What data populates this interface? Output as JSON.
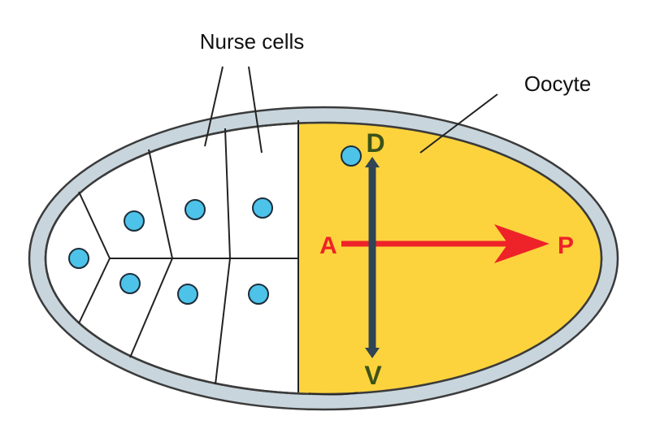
{
  "labels": {
    "nurse_cells": "Nurse cells",
    "oocyte": "Oocyte"
  },
  "axes": {
    "anterior": "A",
    "posterior": "P",
    "dorsal": "D",
    "ventral": "V"
  },
  "colors": {
    "shell_fill": "#c8d5dd",
    "shell_stroke": "#3b3b3b",
    "oocyte_fill": "#fcd33d",
    "nurse_fill": "#ffffff",
    "nucleus_fill": "#4dc3ea",
    "ap_arrow": "#ee2229",
    "dv_arrow": "#2f4455",
    "dv_label": "#3c5218"
  }
}
